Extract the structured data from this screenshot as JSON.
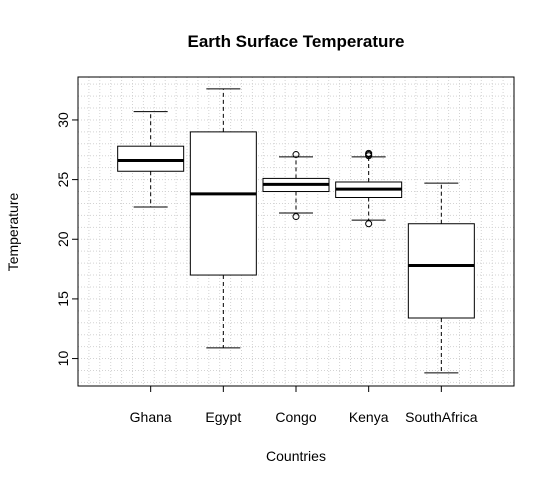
{
  "chart_data": {
    "type": "boxplot",
    "title": "Earth Surface Temperature",
    "xlabel": "Countries",
    "ylabel": "Temperature",
    "ylim": [
      7.7,
      33.6
    ],
    "yticks": [
      10,
      15,
      20,
      25,
      30
    ],
    "grid": true,
    "categories": [
      "Ghana",
      "Egypt",
      "Congo",
      "Kenya",
      "SouthAfrica"
    ],
    "boxes": [
      {
        "min": 22.7,
        "q1": 25.7,
        "median": 26.6,
        "q3": 27.8,
        "max": 30.7,
        "outliers": []
      },
      {
        "min": 10.9,
        "q1": 17.0,
        "median": 23.8,
        "q3": 29.0,
        "max": 32.6,
        "outliers": []
      },
      {
        "min": 22.2,
        "q1": 24.0,
        "median": 24.6,
        "q3": 25.1,
        "max": 26.9,
        "outliers": [
          21.9,
          27.1
        ]
      },
      {
        "min": 21.6,
        "q1": 23.5,
        "median": 24.2,
        "q3": 24.8,
        "max": 26.9,
        "outliers": [
          21.3,
          27.0,
          27.1,
          27.2
        ]
      },
      {
        "min": 8.8,
        "q1": 13.4,
        "median": 17.8,
        "q3": 21.3,
        "max": 24.7,
        "outliers": []
      }
    ]
  }
}
